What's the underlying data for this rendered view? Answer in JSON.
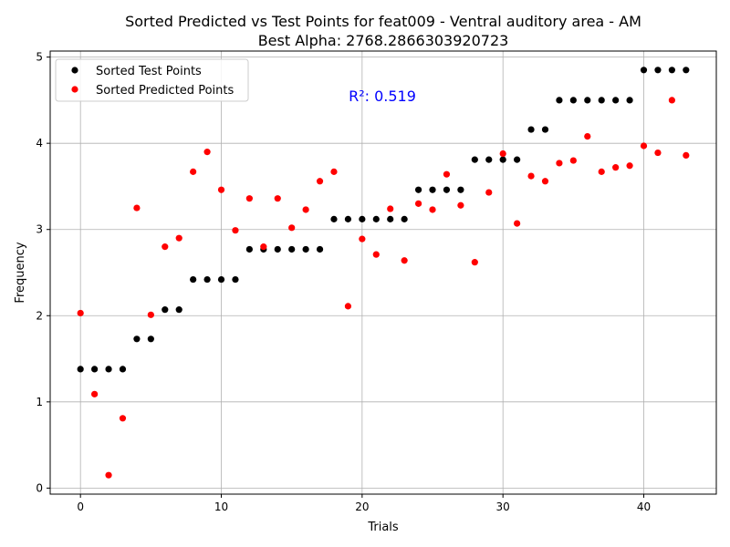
{
  "chart_data": {
    "type": "scatter",
    "title_line1": "Sorted Predicted vs Test Points for feat009 - Ventral auditory area - AM",
    "title_line2": "Best Alpha: 2768.2866303920723",
    "xlabel": "Trials",
    "ylabel": "Frequency",
    "xlim": [
      -2.15,
      45.15
    ],
    "ylim": [
      -0.07,
      5.07
    ],
    "x_ticks": [
      0,
      10,
      20,
      30,
      40
    ],
    "y_ticks": [
      0,
      1,
      2,
      3,
      4,
      5
    ],
    "grid": true,
    "legend_position": "upper-left",
    "annotation": "R²: 0.519",
    "annotation_color": "#0000ff",
    "series": [
      {
        "name": "Sorted Test Points",
        "color": "#000000",
        "x": [
          0,
          1,
          2,
          3,
          4,
          5,
          6,
          7,
          8,
          9,
          10,
          11,
          12,
          13,
          14,
          15,
          16,
          17,
          18,
          19,
          20,
          21,
          22,
          23,
          24,
          25,
          26,
          27,
          28,
          29,
          30,
          31,
          32,
          33,
          34,
          35,
          36,
          37,
          38,
          39,
          40,
          41,
          42,
          43
        ],
        "y": [
          1.38,
          1.38,
          1.38,
          1.38,
          1.73,
          1.73,
          2.07,
          2.07,
          2.42,
          2.42,
          2.42,
          2.42,
          2.77,
          2.77,
          2.77,
          2.77,
          2.77,
          2.77,
          3.12,
          3.12,
          3.12,
          3.12,
          3.12,
          3.12,
          3.46,
          3.46,
          3.46,
          3.46,
          3.81,
          3.81,
          3.81,
          3.81,
          4.16,
          4.16,
          4.5,
          4.5,
          4.5,
          4.5,
          4.5,
          4.5,
          4.85,
          4.85,
          4.85,
          4.85
        ]
      },
      {
        "name": "Sorted Predicted Points",
        "color": "#ff0000",
        "x": [
          0,
          1,
          2,
          3,
          4,
          5,
          6,
          7,
          8,
          9,
          10,
          11,
          12,
          13,
          14,
          15,
          16,
          17,
          18,
          19,
          20,
          21,
          22,
          23,
          24,
          25,
          26,
          27,
          28,
          29,
          30,
          31,
          32,
          33,
          34,
          35,
          36,
          37,
          38,
          39,
          40,
          41,
          42,
          43
        ],
        "y": [
          2.03,
          1.09,
          0.15,
          0.81,
          3.25,
          2.01,
          2.8,
          2.9,
          3.67,
          3.9,
          3.46,
          2.99,
          3.36,
          2.8,
          3.36,
          3.02,
          3.23,
          3.56,
          3.67,
          2.11,
          2.89,
          2.71,
          3.24,
          2.64,
          3.3,
          3.23,
          3.64,
          3.28,
          2.62,
          3.43,
          3.88,
          3.07,
          3.62,
          3.56,
          3.77,
          3.8,
          4.08,
          3.67,
          3.72,
          3.74,
          3.97,
          3.89,
          4.5,
          3.86
        ]
      }
    ]
  }
}
